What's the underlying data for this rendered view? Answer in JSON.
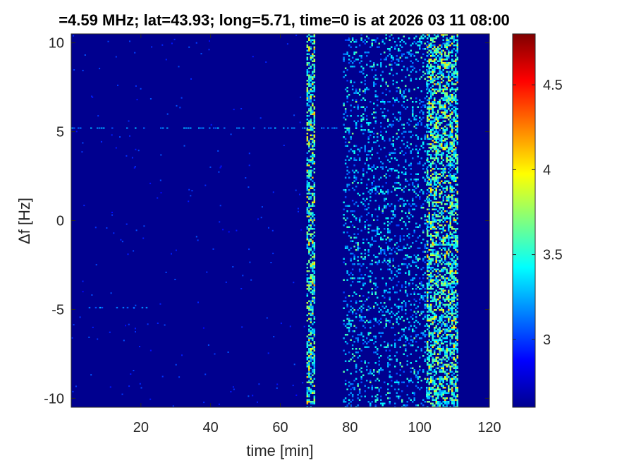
{
  "chart_data": {
    "type": "heatmap",
    "title": "=4.59 MHz;  lat=43.93; long=5.71, time=0 is at 2026 03 11 08:00",
    "xlabel": "time [min]",
    "ylabel": "Δf [Hz]",
    "xlim": [
      0,
      120
    ],
    "ylim": [
      -10.5,
      10.5
    ],
    "xticks": [
      20,
      40,
      60,
      80,
      100,
      120
    ],
    "xtick_labels": [
      "20",
      "40",
      "60",
      "80",
      "100",
      "120"
    ],
    "yticks": [
      -10,
      -5,
      0,
      5,
      10
    ],
    "ytick_labels": [
      "-10",
      "-5",
      "0",
      "5",
      "10"
    ],
    "colorbar": {
      "colormap": "jet",
      "range": [
        2.6,
        4.8
      ],
      "ticks": [
        3,
        3.5,
        4,
        4.5
      ],
      "tick_labels": [
        "3",
        "3.5",
        "4",
        "4.5"
      ]
    },
    "background_color": "#00008f",
    "bands": [
      {
        "x_start": 67.5,
        "x_end": 70.0,
        "intensity": "high"
      },
      {
        "x_start": 78.0,
        "x_end": 102.0,
        "intensity": "medium"
      },
      {
        "x_start": 102.0,
        "x_end": 111.0,
        "intensity": "high"
      }
    ],
    "faint_lines": [
      {
        "y": 5.2,
        "x_start": 0,
        "x_end": 80
      },
      {
        "y": -4.9,
        "x_start": 5,
        "x_end": 25
      }
    ],
    "grid": false
  }
}
